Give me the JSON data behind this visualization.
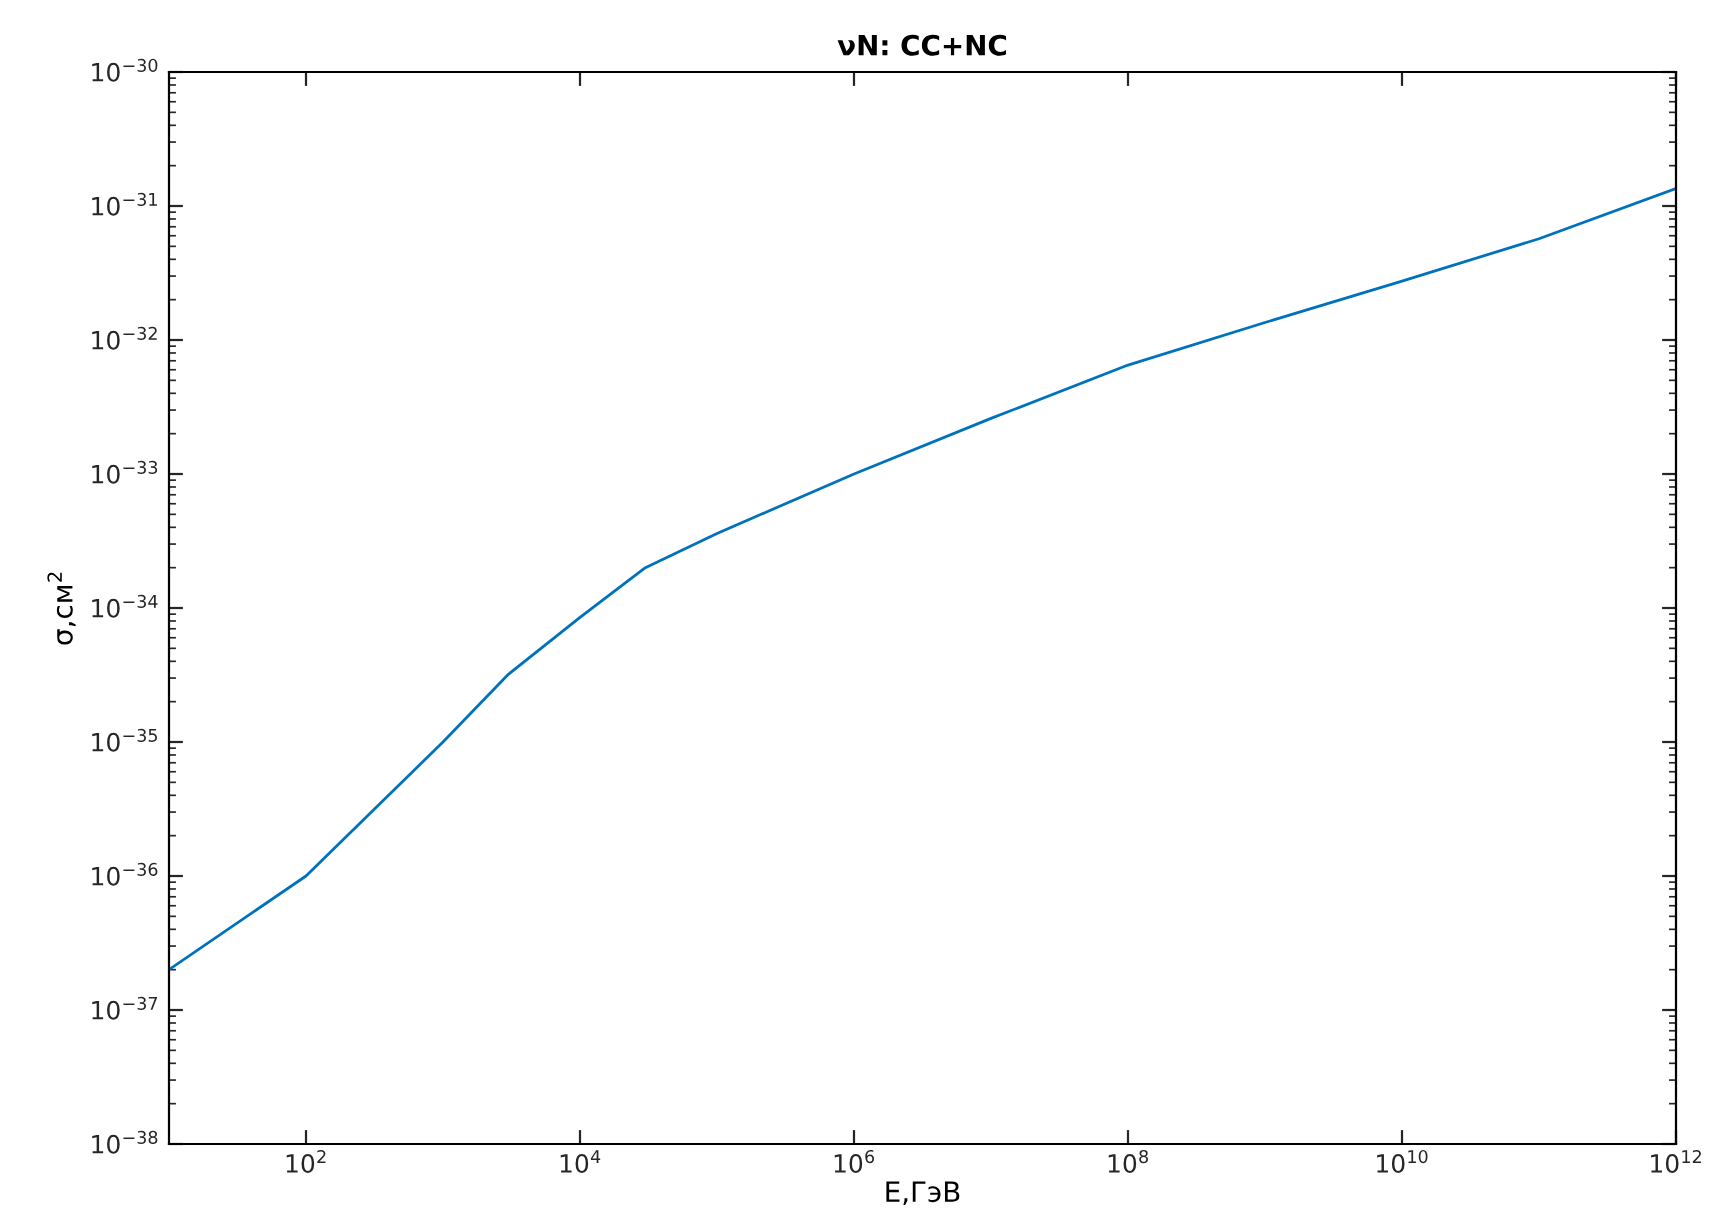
{
  "chart_data": {
    "type": "line",
    "title": "νN: CC+NC",
    "xlabel": "E,ГэВ",
    "ylabel": "σ,см$^{2}$",
    "log": "xy",
    "grid": false,
    "legend": false,
    "marker": "none",
    "line_style": "solid",
    "x": [
      10,
      100,
      1000,
      3000,
      10000,
      30000,
      100000,
      1000000,
      10000000,
      100000000,
      1000000000,
      10000000000,
      100000000000,
      1000000000000
    ],
    "series": [
      {
        "color": "#0072bd",
        "values": [
          2e-37,
          1e-36,
          1e-35,
          3.2e-35,
          8.5e-35,
          2e-34,
          3.6e-34,
          1e-33,
          2.6e-33,
          6.5e-33,
          1.35e-32,
          2.75e-32,
          5.7e-32,
          1.35e-31
        ]
      }
    ],
    "xlim": [
      10,
      1000000000000
    ],
    "xticks": [
      {
        "value": 100,
        "label": "10$^{2}$"
      },
      {
        "value": 10000,
        "label": "10$^{4}$"
      },
      {
        "value": 1000000,
        "label": "10$^{6}$"
      },
      {
        "value": 100000000,
        "label": "10$^{8}$"
      },
      {
        "value": 10000000000,
        "label": "10$^{10}$"
      },
      {
        "value": 1000000000000,
        "label": "10$^{12}$"
      }
    ],
    "ylim": [
      1e-38,
      1e-30
    ],
    "yticks": [
      {
        "value": 1e-38,
        "label": "10$^{−38}$"
      },
      {
        "value": 1e-37,
        "label": "10$^{−37}$"
      },
      {
        "value": 1e-36,
        "label": "10$^{−36}$"
      },
      {
        "value": 1e-35,
        "label": "10$^{−35}$"
      },
      {
        "value": 1e-34,
        "label": "10$^{−34}$"
      },
      {
        "value": 1e-33,
        "label": "10$^{−33}$"
      },
      {
        "value": 1e-32,
        "label": "10$^{−32}$"
      },
      {
        "value": 1e-31,
        "label": "10$^{−31}$"
      },
      {
        "value": 1e-30,
        "label": "10$^{−30}$"
      }
    ]
  }
}
